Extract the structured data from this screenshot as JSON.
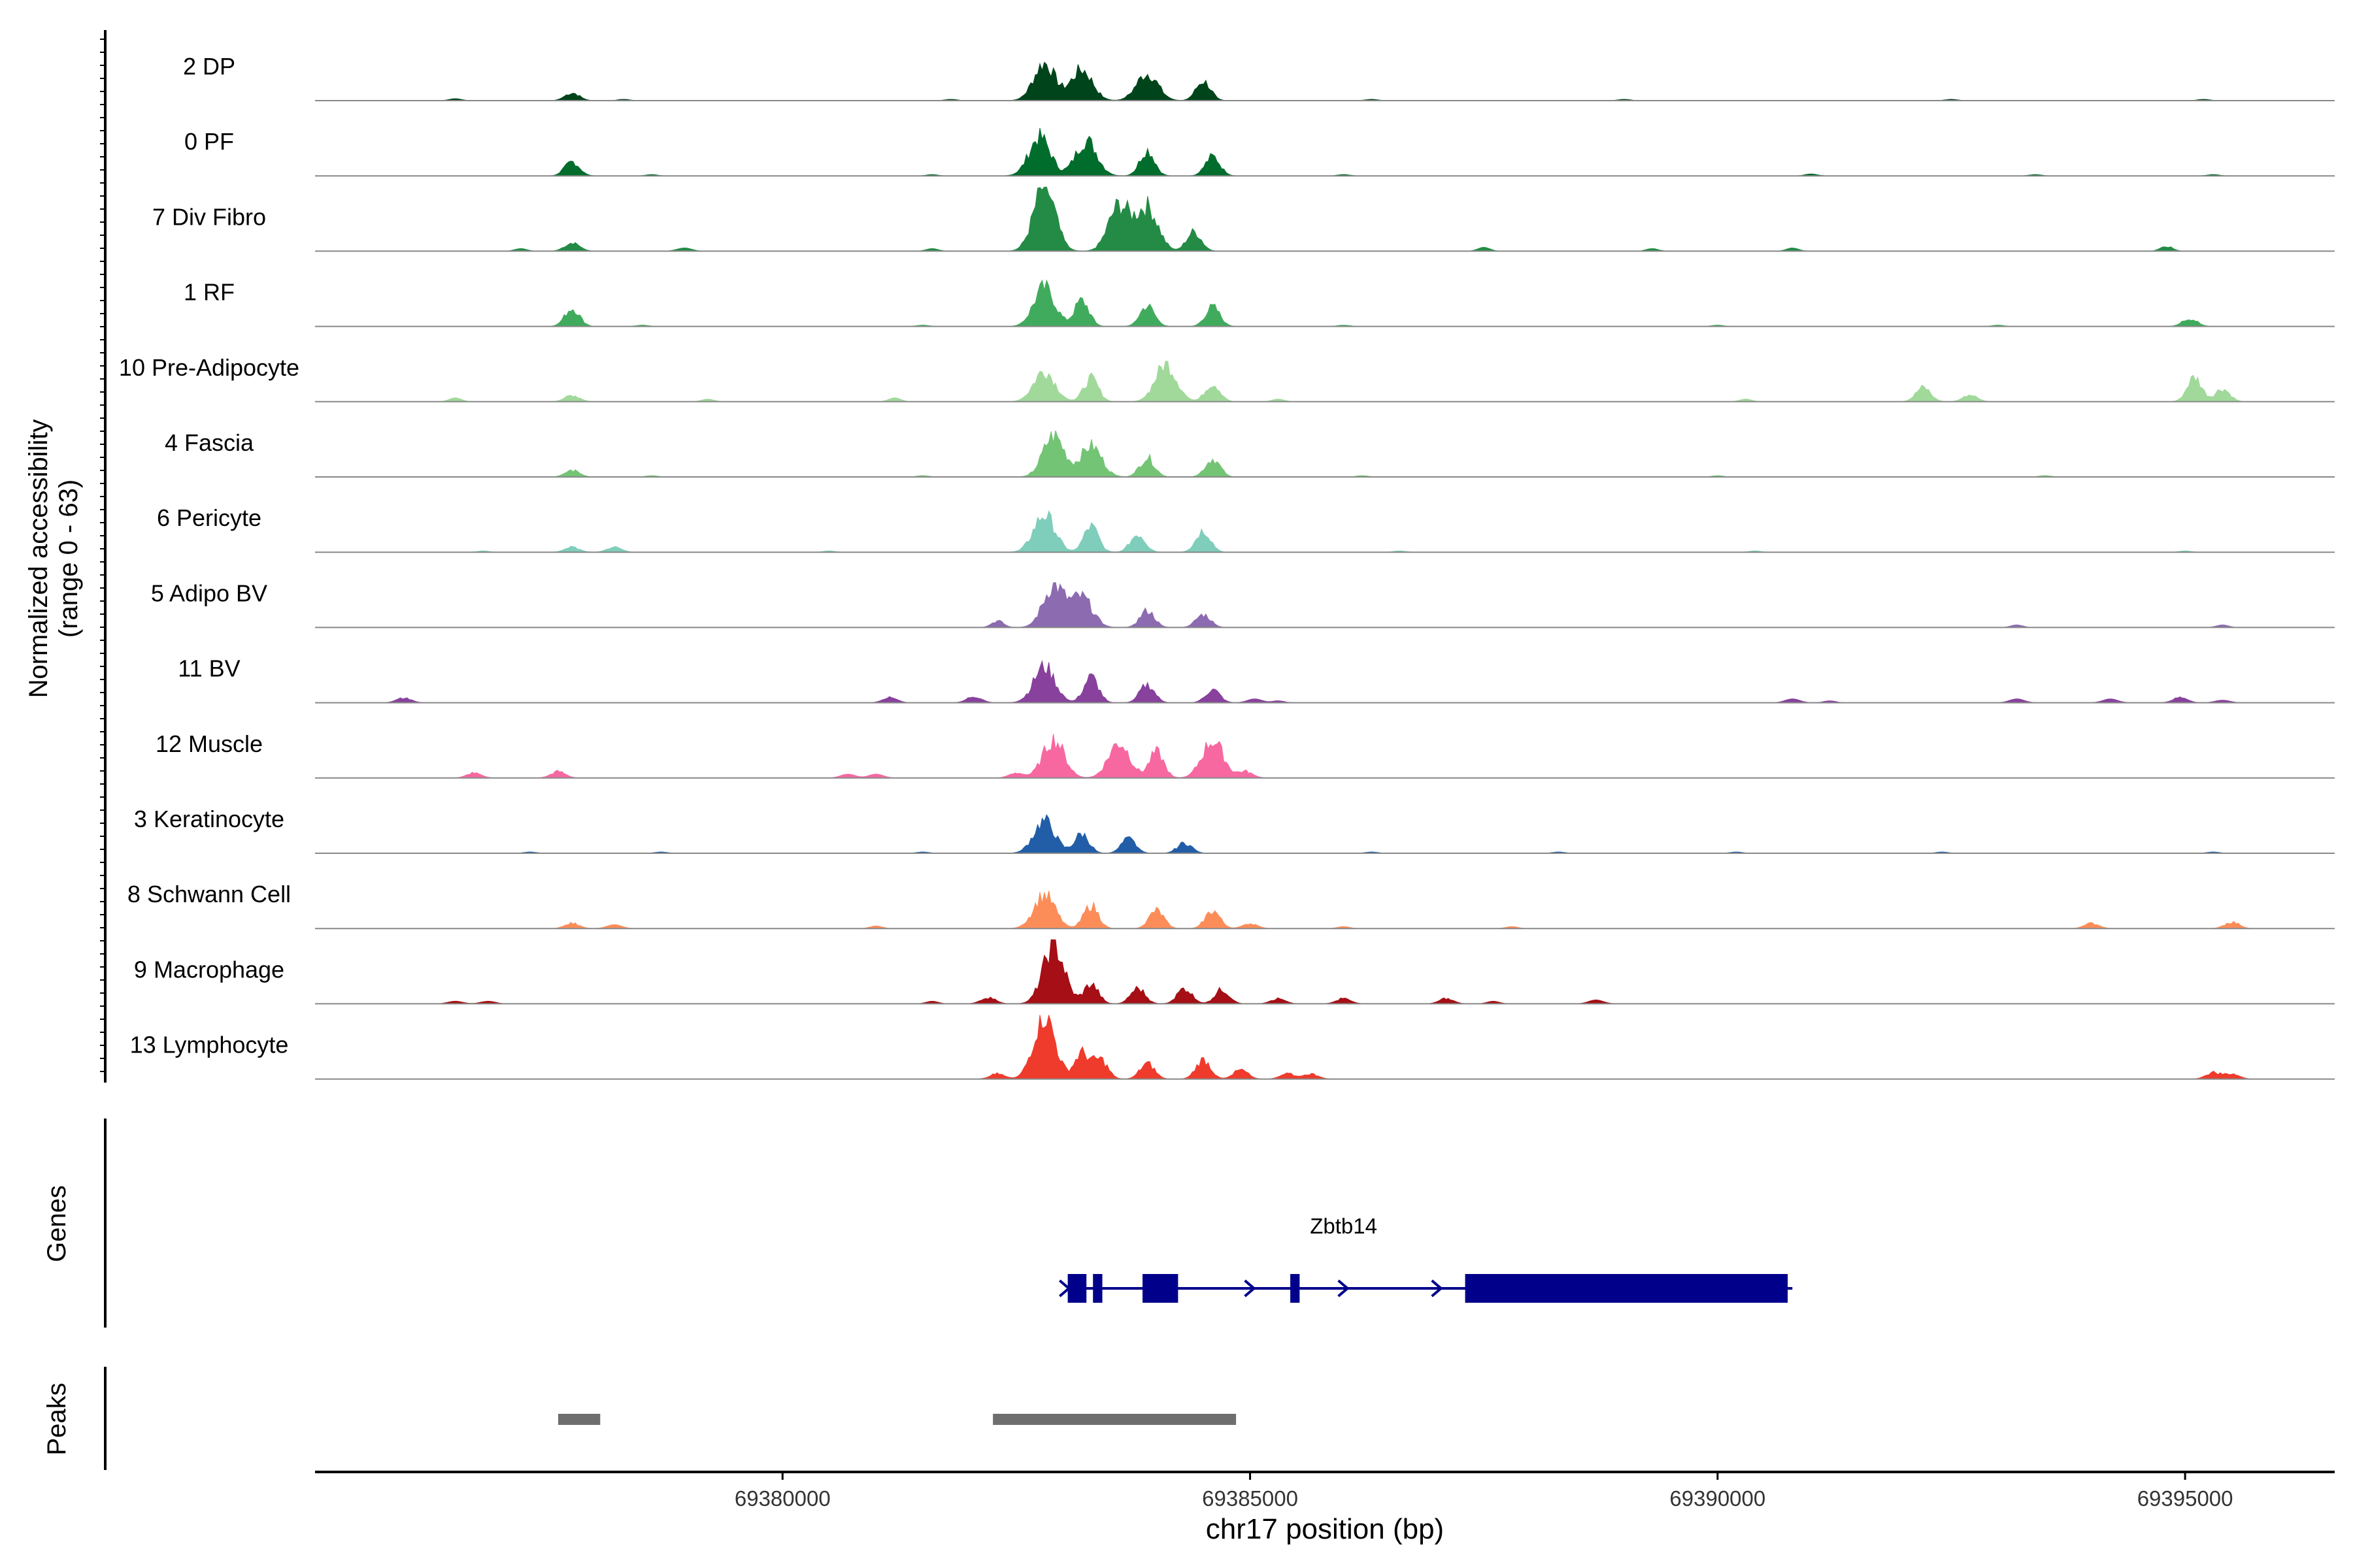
{
  "chart_data": {
    "type": "area",
    "title": "",
    "xlabel": "chr17 position (bp)",
    "ylabel": "Normalized accessibility",
    "ylabel_range": "(range 0 - 63)",
    "ylim": [
      0,
      63
    ],
    "xlim": [
      69375000,
      69396600
    ],
    "xticks": [
      69380000,
      69385000,
      69390000,
      69395000
    ],
    "xtick_labels": [
      "69380000",
      "69385000",
      "69390000",
      "69395000"
    ],
    "genes_label": "Genes",
    "peaks_label": "Peaks",
    "series": [
      {
        "name": "2 DP",
        "color": "#00441b",
        "peaks": [
          [
            69377750,
            12
          ],
          [
            69382800,
            58
          ],
          [
            69383200,
            48
          ],
          [
            69383900,
            42
          ],
          [
            69384500,
            30
          ]
        ],
        "bg": [
          [
            69376500,
            3
          ],
          [
            69378300,
            2
          ],
          [
            69381800,
            2
          ],
          [
            69386300,
            2
          ],
          [
            69389000,
            2
          ],
          [
            69392500,
            2
          ],
          [
            69395200,
            2
          ]
        ]
      },
      {
        "name": "0 PF",
        "color": "#006d2c",
        "peaks": [
          [
            69377750,
            22
          ],
          [
            69382750,
            60
          ],
          [
            69383250,
            55
          ],
          [
            69383900,
            40
          ],
          [
            69384600,
            30
          ]
        ],
        "bg": [
          [
            69378600,
            2
          ],
          [
            69381600,
            2
          ],
          [
            69386000,
            2
          ],
          [
            69391000,
            3
          ],
          [
            69393400,
            2
          ],
          [
            69395300,
            2
          ]
        ]
      },
      {
        "name": "7 Div Fibro",
        "color": "#238b45",
        "peaks": [
          [
            69377750,
            14
          ],
          [
            69378950,
            5
          ],
          [
            69382800,
            100
          ],
          [
            69383600,
            70
          ],
          [
            69383900,
            68
          ],
          [
            69384400,
            30
          ]
        ],
        "bg": [
          [
            69377200,
            4
          ],
          [
            69381600,
            4
          ],
          [
            69387500,
            6
          ],
          [
            69389300,
            4
          ],
          [
            69390800,
            5
          ],
          [
            69394800,
            8
          ]
        ]
      },
      {
        "name": "1 RF",
        "color": "#41ab5d",
        "peaks": [
          [
            69377750,
            28
          ],
          [
            69382800,
            60
          ],
          [
            69383200,
            40
          ],
          [
            69383900,
            32
          ],
          [
            69384600,
            30
          ],
          [
            69395050,
            12
          ]
        ],
        "bg": [
          [
            69378500,
            2
          ],
          [
            69381500,
            2
          ],
          [
            69386000,
            2
          ],
          [
            69390000,
            2
          ],
          [
            69393000,
            2
          ]
        ]
      },
      {
        "name": "10 Pre-Adipocyte",
        "color": "#a1d99b",
        "peaks": [
          [
            69377750,
            10
          ],
          [
            69382800,
            48
          ],
          [
            69383300,
            36
          ],
          [
            69384100,
            58
          ],
          [
            69384600,
            28
          ],
          [
            69392200,
            22
          ],
          [
            69392700,
            10
          ],
          [
            69395100,
            38
          ],
          [
            69395400,
            20
          ]
        ],
        "bg": [
          [
            69376500,
            6
          ],
          [
            69379200,
            4
          ],
          [
            69381200,
            6
          ],
          [
            69385300,
            4
          ],
          [
            69390300,
            4
          ]
        ]
      },
      {
        "name": "4 Fascia",
        "color": "#74c476",
        "peaks": [
          [
            69377750,
            10
          ],
          [
            69382900,
            64
          ],
          [
            69383300,
            48
          ],
          [
            69383900,
            30
          ],
          [
            69384600,
            28
          ]
        ],
        "bg": [
          [
            69378600,
            2
          ],
          [
            69381500,
            2
          ],
          [
            69386200,
            2
          ],
          [
            69390000,
            2
          ],
          [
            69393500,
            2
          ]
        ]
      },
      {
        "name": "6 Pericyte",
        "color": "#7fcdbb",
        "peaks": [
          [
            69377750,
            8
          ],
          [
            69378200,
            8
          ],
          [
            69382800,
            58
          ],
          [
            69383300,
            40
          ],
          [
            69383800,
            28
          ],
          [
            69384500,
            34
          ]
        ],
        "bg": [
          [
            69376800,
            2
          ],
          [
            69380500,
            2
          ],
          [
            69386600,
            2
          ],
          [
            69390400,
            2
          ],
          [
            69395000,
            2
          ]
        ]
      },
      {
        "name": "5 Adipo BV",
        "color": "#8c6bb1",
        "peaks": [
          [
            69382900,
            64
          ],
          [
            69383200,
            46
          ],
          [
            69383900,
            26
          ],
          [
            69384500,
            20
          ]
        ],
        "bg": [
          [
            69382300,
            10
          ],
          [
            69393200,
            4
          ],
          [
            69395400,
            4
          ]
        ]
      },
      {
        "name": "11 BV",
        "color": "#88419d",
        "peaks": [
          [
            69375950,
            8
          ],
          [
            69381150,
            8
          ],
          [
            69382050,
            10
          ],
          [
            69382800,
            56
          ],
          [
            69383300,
            40
          ],
          [
            69383900,
            28
          ],
          [
            69384600,
            20
          ],
          [
            69385050,
            6
          ],
          [
            69390800,
            6
          ],
          [
            69393200,
            6
          ],
          [
            69394200,
            6
          ],
          [
            69394950,
            8
          ],
          [
            69395400,
            4
          ]
        ],
        "bg": [
          [
            69385300,
            3
          ],
          [
            69391200,
            3
          ]
        ]
      },
      {
        "name": "12 Muscle",
        "color": "#f768a1",
        "peaks": [
          [
            69376700,
            8
          ],
          [
            69377600,
            10
          ],
          [
            69380700,
            6
          ],
          [
            69381000,
            6
          ],
          [
            69382500,
            8
          ],
          [
            69382900,
            60
          ],
          [
            69383600,
            55
          ],
          [
            69384000,
            40
          ],
          [
            69384600,
            58
          ],
          [
            69384950,
            10
          ]
        ],
        "bg": []
      },
      {
        "name": "3 Keratinocyte",
        "color": "#225ea8",
        "peaks": [
          [
            69382800,
            50
          ],
          [
            69383200,
            30
          ],
          [
            69383700,
            22
          ],
          [
            69384300,
            16
          ]
        ],
        "bg": [
          [
            69377300,
            2
          ],
          [
            69378700,
            2
          ],
          [
            69381500,
            2
          ],
          [
            69386300,
            2
          ],
          [
            69388300,
            2
          ],
          [
            69390200,
            2
          ],
          [
            69392400,
            2
          ],
          [
            69395300,
            2
          ]
        ]
      },
      {
        "name": "8 Schwann Cell",
        "color": "#fc8d59",
        "peaks": [
          [
            69377750,
            8
          ],
          [
            69378200,
            6
          ],
          [
            69382800,
            52
          ],
          [
            69383300,
            36
          ],
          [
            69384000,
            28
          ],
          [
            69384600,
            28
          ],
          [
            69385000,
            8
          ],
          [
            69394000,
            8
          ],
          [
            69395500,
            10
          ]
        ],
        "bg": [
          [
            69381000,
            4
          ],
          [
            69386000,
            3
          ],
          [
            69387800,
            3
          ]
        ]
      },
      {
        "name": "9 Macrophage",
        "color": "#a50f15",
        "peaks": [
          [
            69376500,
            4
          ],
          [
            69376850,
            4
          ],
          [
            69382200,
            10
          ],
          [
            69382900,
            90
          ],
          [
            69383300,
            30
          ],
          [
            69383800,
            24
          ],
          [
            69384300,
            24
          ],
          [
            69384700,
            22
          ],
          [
            69385300,
            8
          ],
          [
            69386000,
            8
          ],
          [
            69387100,
            8
          ],
          [
            69388700,
            6
          ]
        ],
        "bg": [
          [
            69381600,
            4
          ],
          [
            69387600,
            4
          ]
        ]
      },
      {
        "name": "13 Lymphocyte",
        "color": "#ef3b2c",
        "peaks": [
          [
            69382300,
            8
          ],
          [
            69382800,
            100
          ],
          [
            69383200,
            40
          ],
          [
            69383400,
            30
          ],
          [
            69383900,
            24
          ],
          [
            69384500,
            30
          ],
          [
            69384900,
            14
          ],
          [
            69385400,
            8
          ],
          [
            69385650,
            8
          ],
          [
            69395300,
            10
          ],
          [
            69395500,
            8
          ]
        ],
        "bg": []
      }
    ],
    "gene": {
      "name": "Zbtb14",
      "color": "#00008b",
      "start": 69383050,
      "end": 69390800,
      "exons": [
        [
          69383050,
          69383250
        ],
        [
          69383320,
          69383420
        ],
        [
          69383850,
          69384230
        ],
        [
          69385430,
          69385530
        ],
        [
          69387300,
          69390750
        ]
      ],
      "arrows": [
        69383020,
        69385000,
        69386000,
        69387000
      ]
    },
    "peaks": [
      [
        69377600,
        69378050
      ],
      [
        69382250,
        69384850
      ]
    ],
    "peak_color": "#6e6e6e"
  }
}
